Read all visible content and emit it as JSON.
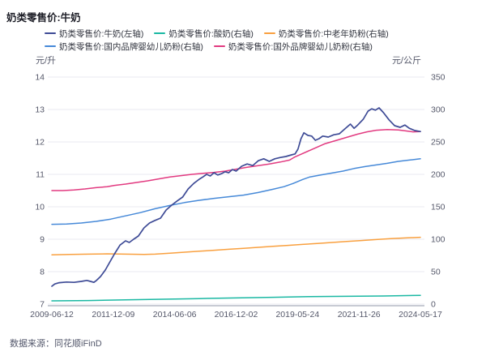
{
  "page": {
    "title": "奶类零售价:牛奶",
    "footer": "数据来源：同花顺iFinD"
  },
  "chart_data": {
    "type": "line",
    "title": "奶类零售价:牛奶",
    "grid": true,
    "legend_position": "top",
    "left_axis": {
      "unit": "元/升",
      "min": 7,
      "max": 14,
      "ticks": [
        14,
        13,
        12,
        11,
        10,
        9,
        8,
        7
      ]
    },
    "right_axis": {
      "unit": "元/公斤",
      "min": 0,
      "max": 350,
      "ticks": [
        350,
        300,
        250,
        200,
        150,
        100,
        50,
        0
      ]
    },
    "x_ticks": [
      "2009-06-12",
      "2011-12-09",
      "2014-06-06",
      "2016-12-02",
      "2019-05-24",
      "2021-11-26",
      "2024-05-17"
    ],
    "legend_rows": [
      [
        0,
        1,
        2
      ],
      [
        3,
        4
      ]
    ],
    "series": [
      {
        "key": "milk",
        "name": "奶类零售价:牛奶(左轴)",
        "color": "#3e4b96",
        "axis": "left",
        "points": [
          [
            0.0,
            7.55
          ],
          [
            0.008,
            7.62
          ],
          [
            0.02,
            7.66
          ],
          [
            0.04,
            7.68
          ],
          [
            0.06,
            7.67
          ],
          [
            0.08,
            7.7
          ],
          [
            0.095,
            7.73
          ],
          [
            0.105,
            7.7
          ],
          [
            0.114,
            7.67
          ],
          [
            0.12,
            7.72
          ],
          [
            0.132,
            7.85
          ],
          [
            0.145,
            8.05
          ],
          [
            0.16,
            8.35
          ],
          [
            0.17,
            8.55
          ],
          [
            0.185,
            8.82
          ],
          [
            0.2,
            8.95
          ],
          [
            0.21,
            8.9
          ],
          [
            0.222,
            9.0
          ],
          [
            0.235,
            9.1
          ],
          [
            0.25,
            9.35
          ],
          [
            0.265,
            9.5
          ],
          [
            0.28,
            9.58
          ],
          [
            0.295,
            9.65
          ],
          [
            0.31,
            9.9
          ],
          [
            0.325,
            10.05
          ],
          [
            0.34,
            10.18
          ],
          [
            0.355,
            10.3
          ],
          [
            0.37,
            10.55
          ],
          [
            0.385,
            10.72
          ],
          [
            0.4,
            10.85
          ],
          [
            0.41,
            10.92
          ],
          [
            0.42,
            11.0
          ],
          [
            0.43,
            10.95
          ],
          [
            0.44,
            11.05
          ],
          [
            0.45,
            10.98
          ],
          [
            0.46,
            11.02
          ],
          [
            0.47,
            11.08
          ],
          [
            0.48,
            11.05
          ],
          [
            0.49,
            11.15
          ],
          [
            0.5,
            11.1
          ],
          [
            0.515,
            11.25
          ],
          [
            0.53,
            11.32
          ],
          [
            0.545,
            11.27
          ],
          [
            0.56,
            11.42
          ],
          [
            0.575,
            11.48
          ],
          [
            0.59,
            11.4
          ],
          [
            0.605,
            11.48
          ],
          [
            0.62,
            11.52
          ],
          [
            0.635,
            11.55
          ],
          [
            0.65,
            11.6
          ],
          [
            0.66,
            11.63
          ],
          [
            0.668,
            11.78
          ],
          [
            0.676,
            12.1
          ],
          [
            0.684,
            12.28
          ],
          [
            0.695,
            12.2
          ],
          [
            0.705,
            12.18
          ],
          [
            0.715,
            12.05
          ],
          [
            0.725,
            12.1
          ],
          [
            0.735,
            12.18
          ],
          [
            0.75,
            12.15
          ],
          [
            0.765,
            12.22
          ],
          [
            0.78,
            12.25
          ],
          [
            0.795,
            12.4
          ],
          [
            0.81,
            12.55
          ],
          [
            0.82,
            12.42
          ],
          [
            0.83,
            12.52
          ],
          [
            0.845,
            12.7
          ],
          [
            0.858,
            12.95
          ],
          [
            0.868,
            13.02
          ],
          [
            0.878,
            12.98
          ],
          [
            0.888,
            13.05
          ],
          [
            0.9,
            12.9
          ],
          [
            0.915,
            12.68
          ],
          [
            0.93,
            12.5
          ],
          [
            0.945,
            12.45
          ],
          [
            0.958,
            12.52
          ],
          [
            0.97,
            12.42
          ],
          [
            0.985,
            12.35
          ],
          [
            1.0,
            12.32
          ]
        ]
      },
      {
        "key": "yogurt",
        "name": "奶类零售价:酸奶(右轴)",
        "color": "#1ab8a3",
        "axis": "right",
        "points": [
          [
            0.0,
            5
          ],
          [
            0.1,
            5.5
          ],
          [
            0.2,
            6.5
          ],
          [
            0.3,
            7.5
          ],
          [
            0.4,
            8.5
          ],
          [
            0.5,
            9.5
          ],
          [
            0.6,
            10.5
          ],
          [
            0.7,
            11.5
          ],
          [
            0.8,
            12
          ],
          [
            0.9,
            12.5
          ],
          [
            1.0,
            13.5
          ]
        ]
      },
      {
        "key": "middle-aged-powder",
        "name": "奶类零售价:中老年奶粉(右轴)",
        "color": "#f9a03f",
        "axis": "right",
        "points": [
          [
            0.0,
            76
          ],
          [
            0.05,
            76.5
          ],
          [
            0.1,
            77
          ],
          [
            0.15,
            77.5
          ],
          [
            0.2,
            77
          ],
          [
            0.25,
            76.5
          ],
          [
            0.28,
            77
          ],
          [
            0.32,
            78.5
          ],
          [
            0.36,
            80
          ],
          [
            0.4,
            81.5
          ],
          [
            0.44,
            83
          ],
          [
            0.48,
            84.5
          ],
          [
            0.52,
            86
          ],
          [
            0.56,
            87.5
          ],
          [
            0.6,
            89
          ],
          [
            0.64,
            90.5
          ],
          [
            0.68,
            92
          ],
          [
            0.72,
            93.5
          ],
          [
            0.76,
            95
          ],
          [
            0.8,
            96.5
          ],
          [
            0.84,
            98
          ],
          [
            0.88,
            99.5
          ],
          [
            0.92,
            101
          ],
          [
            0.96,
            102
          ],
          [
            1.0,
            103
          ]
        ]
      },
      {
        "key": "domestic-infant-powder",
        "name": "奶类零售价:国内品牌婴幼儿奶粉(右轴)",
        "color": "#4689d8",
        "axis": "right",
        "points": [
          [
            0.0,
            123
          ],
          [
            0.04,
            123.5
          ],
          [
            0.08,
            125
          ],
          [
            0.12,
            127.5
          ],
          [
            0.16,
            131
          ],
          [
            0.2,
            136
          ],
          [
            0.24,
            141
          ],
          [
            0.28,
            147
          ],
          [
            0.32,
            152
          ],
          [
            0.36,
            156.5
          ],
          [
            0.4,
            160
          ],
          [
            0.44,
            163
          ],
          [
            0.48,
            165.5
          ],
          [
            0.52,
            168
          ],
          [
            0.56,
            172
          ],
          [
            0.6,
            177
          ],
          [
            0.63,
            181
          ],
          [
            0.655,
            186
          ],
          [
            0.68,
            192
          ],
          [
            0.7,
            196
          ],
          [
            0.73,
            199
          ],
          [
            0.76,
            202
          ],
          [
            0.79,
            205
          ],
          [
            0.82,
            209
          ],
          [
            0.85,
            212
          ],
          [
            0.88,
            214.5
          ],
          [
            0.91,
            217
          ],
          [
            0.94,
            220
          ],
          [
            0.97,
            222
          ],
          [
            1.0,
            224
          ]
        ]
      },
      {
        "key": "foreign-infant-powder",
        "name": "奶类零售价:国外品牌婴幼儿奶粉(右轴)",
        "color": "#e23a80",
        "axis": "right",
        "points": [
          [
            0.0,
            175
          ],
          [
            0.03,
            175
          ],
          [
            0.06,
            176
          ],
          [
            0.09,
            177.5
          ],
          [
            0.12,
            179.5
          ],
          [
            0.15,
            181
          ],
          [
            0.17,
            183
          ],
          [
            0.2,
            185
          ],
          [
            0.23,
            187.5
          ],
          [
            0.26,
            190
          ],
          [
            0.29,
            193
          ],
          [
            0.32,
            196
          ],
          [
            0.35,
            198
          ],
          [
            0.38,
            200
          ],
          [
            0.41,
            201.5
          ],
          [
            0.44,
            203
          ],
          [
            0.47,
            205
          ],
          [
            0.5,
            208
          ],
          [
            0.53,
            211
          ],
          [
            0.56,
            213.5
          ],
          [
            0.59,
            216
          ],
          [
            0.62,
            219
          ],
          [
            0.645,
            222
          ],
          [
            0.66,
            227
          ],
          [
            0.68,
            232
          ],
          [
            0.7,
            237
          ],
          [
            0.72,
            242
          ],
          [
            0.74,
            247
          ],
          [
            0.77,
            252
          ],
          [
            0.8,
            257
          ],
          [
            0.83,
            262
          ],
          [
            0.855,
            265.5
          ],
          [
            0.88,
            268
          ],
          [
            0.91,
            269
          ],
          [
            0.94,
            268.5
          ],
          [
            0.96,
            267
          ],
          [
            0.98,
            265.5
          ],
          [
            1.0,
            266
          ]
        ]
      }
    ],
    "colors": {
      "grid": "#e8eaf2",
      "axis_line": "#b6bac6",
      "tick_text": "#55586a"
    }
  }
}
